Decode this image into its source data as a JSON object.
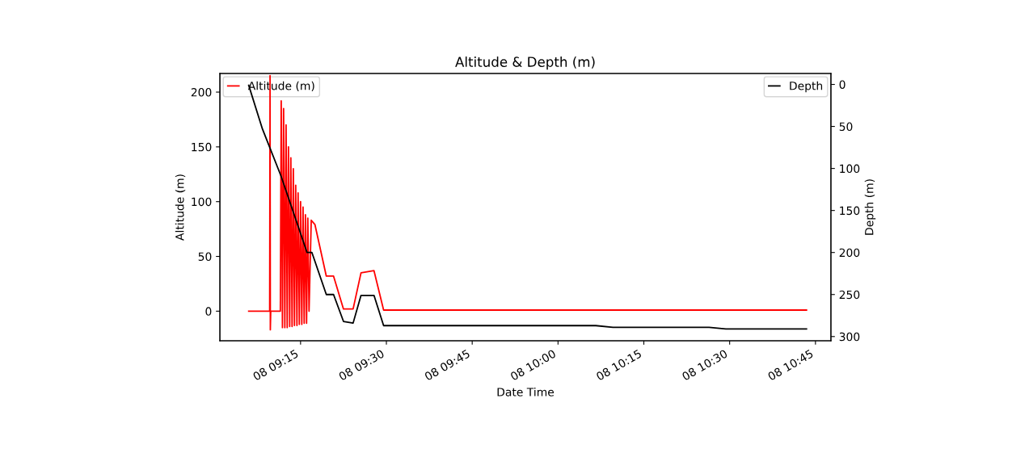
{
  "chart_data": {
    "type": "line",
    "title": "Altitude & Depth (m)",
    "xlabel": "Date Time",
    "ylabel": "Altitude (m)",
    "y2label": "Depth (m)",
    "xlim": [
      "2000-01-08T09:00:54",
      "2000-01-08T10:47:42"
    ],
    "xticks": [
      {
        "value": "2000-01-08T09:15",
        "label": "08 09:15"
      },
      {
        "value": "2000-01-08T09:30",
        "label": "08 09:30"
      },
      {
        "value": "2000-01-08T09:45",
        "label": "08 09:45"
      },
      {
        "value": "2000-01-08T10:00",
        "label": "08 10:00"
      },
      {
        "value": "2000-01-08T10:15",
        "label": "08 10:15"
      },
      {
        "value": "2000-01-08T10:30",
        "label": "08 10:30"
      },
      {
        "value": "2000-01-08T10:45",
        "label": "08 10:45"
      }
    ],
    "ylim": [
      -27,
      217
    ],
    "yticks": [
      0,
      50,
      100,
      150,
      200
    ],
    "y2lim": [
      305,
      -13
    ],
    "y2ticks": [
      0,
      50,
      100,
      150,
      200,
      250,
      300
    ],
    "legend": "top left",
    "grid": false,
    "series": [
      {
        "name": "Altitude (m)",
        "color": "#ff0000",
        "line_style": "solid",
        "x": [
          "2000-01-08T09:05:56",
          "2000-01-08T09:09:36",
          "2000-01-08T09:09:40",
          "2000-01-08T09:09:43",
          "2000-01-08T09:09:47",
          "2000-01-08T09:11:28",
          "2000-01-08T09:11:37",
          "2000-01-08T09:11:50",
          "2000-01-08T09:12:02",
          "2000-01-08T09:12:15",
          "2000-01-08T09:12:28",
          "2000-01-08T09:12:40",
          "2000-01-08T09:12:53",
          "2000-01-08T09:13:06",
          "2000-01-08T09:13:18",
          "2000-01-08T09:13:31",
          "2000-01-08T09:13:44",
          "2000-01-08T09:13:56",
          "2000-01-08T09:14:09",
          "2000-01-08T09:14:22",
          "2000-01-08T09:14:34",
          "2000-01-08T09:14:47",
          "2000-01-08T09:15:00",
          "2000-01-08T09:15:13",
          "2000-01-08T09:15:26",
          "2000-01-08T09:15:38",
          "2000-01-08T09:15:51",
          "2000-01-08T09:16:03",
          "2000-01-08T09:16:16",
          "2000-01-08T09:16:29",
          "2000-01-08T09:16:52",
          "2000-01-08T09:17:31",
          "2000-01-08T09:19:30",
          "2000-01-08T09:20:46",
          "2000-01-08T09:22:30",
          "2000-01-08T09:24:11",
          "2000-01-08T09:25:34",
          "2000-01-08T09:27:50",
          "2000-01-08T09:29:31",
          "2000-01-08T10:43:26"
        ],
        "values": [
          0,
          0,
          215,
          -17,
          0,
          0,
          192,
          -15,
          185,
          -15,
          170,
          -15,
          150,
          -14,
          140,
          -14,
          130,
          -13,
          115,
          -13,
          108,
          -12,
          100,
          -12,
          95,
          -11,
          88,
          -11,
          85,
          0,
          83,
          79,
          32,
          32,
          2,
          2,
          35,
          37,
          1,
          1
        ]
      },
      {
        "name": "Depth",
        "color": "#000000",
        "axis": "y2",
        "line_style": "solid",
        "x": [
          "2000-01-08T09:05:56",
          "2000-01-08T09:08:20",
          "2000-01-08T09:11:35",
          "2000-01-08T09:16:08",
          "2000-01-08T09:16:59",
          "2000-01-08T09:19:30",
          "2000-01-08T09:20:46",
          "2000-01-08T09:22:30",
          "2000-01-08T09:24:11",
          "2000-01-08T09:25:34",
          "2000-01-08T09:27:50",
          "2000-01-08T09:29:31",
          "2000-01-08T10:06:36",
          "2000-01-08T10:09:36",
          "2000-01-08T10:26:24",
          "2000-01-08T10:29:20",
          "2000-01-08T10:43:26"
        ],
        "values": [
          1,
          53,
          109,
          200,
          200,
          250,
          250,
          282,
          284,
          251,
          251,
          287,
          287,
          289,
          289,
          291,
          291
        ]
      }
    ]
  }
}
